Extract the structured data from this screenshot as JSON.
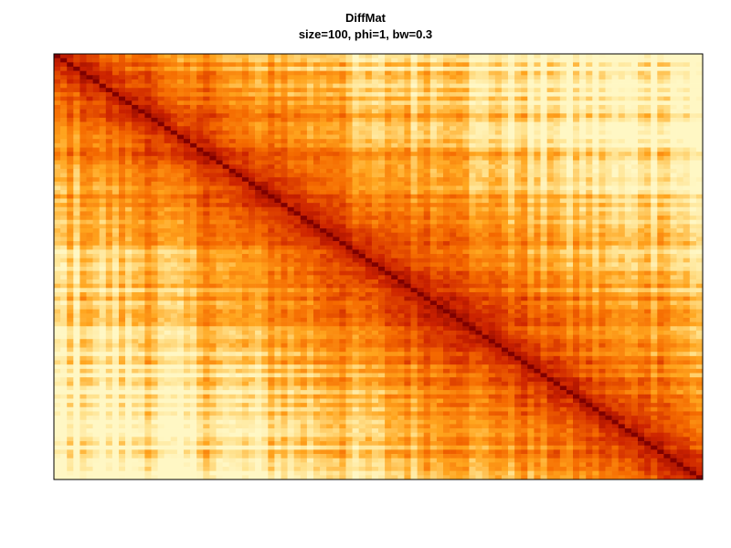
{
  "chart_data": {
    "type": "heatmap",
    "title": "DiffMat",
    "subtitle": "size=100, phi=1, bw=0.3",
    "xlabel": "",
    "ylabel": "",
    "n": 100,
    "axes": false,
    "grid": false,
    "legend": "none",
    "colormap": [
      "#800000",
      "#CC2200",
      "#F56A00",
      "#FFA51E",
      "#FFE08A",
      "#FFF7C4"
    ],
    "colormap_direction": "low values dark red, high values pale yellow",
    "diagonal_value": 0,
    "value_range": [
      0,
      1
    ]
  }
}
